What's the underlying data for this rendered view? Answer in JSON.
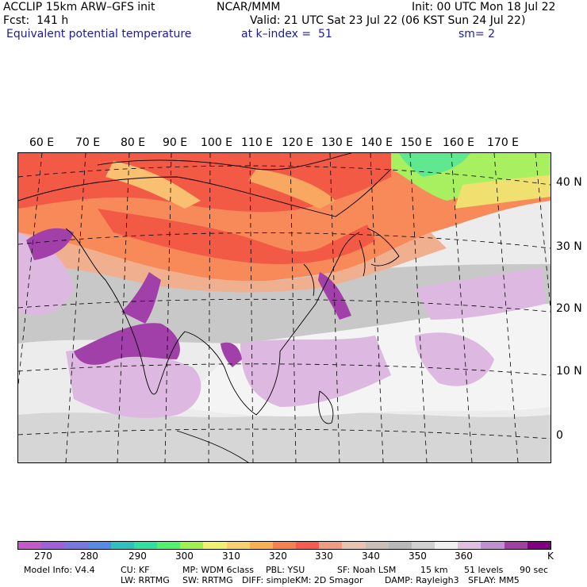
{
  "header": {
    "title": "ACCLIP 15km ARW–GFS init",
    "forecast": "Fcst:  141 h",
    "variable": "Equivalent potential temperature",
    "center": "NCAR/MMM",
    "init": "Init: 00 UTC Mon 18 Jul 22",
    "valid": "Valid: 21 UTC Sat 23 Jul 22 (06 KST Sun 24 Jul 22)",
    "level": "at k–index =  51",
    "smoothing": "sm= 2"
  },
  "map": {
    "lon_labels": [
      "60 E",
      "70 E",
      "80 E",
      "90 E",
      "100 E",
      "110 E",
      "120 E",
      "130 E",
      "140 E",
      "150 E",
      "160 E",
      "170 E"
    ],
    "lat_labels": [
      "40 N",
      "30 N",
      "20 N",
      "10 N",
      "0"
    ]
  },
  "colorbar": {
    "colors": [
      "#c45ac8",
      "#a060d8",
      "#7878e0",
      "#5a8ae8",
      "#30c0c0",
      "#30e0a0",
      "#50f070",
      "#a0f050",
      "#f0f070",
      "#f8d070",
      "#f8b050",
      "#f88050",
      "#f85a50",
      "#f09c80",
      "#e8c4b0",
      "#c8c0b8",
      "#b8b8b8",
      "#d0d0d0",
      "#f0f0f0",
      "#e0c0e0",
      "#c090d0",
      "#a040a0",
      "#800080"
    ],
    "tick_labels": [
      "270",
      "280",
      "290",
      "300",
      "310",
      "320",
      "330",
      "340",
      "350",
      "360"
    ],
    "unit": "K"
  },
  "footer": {
    "line1": [
      "Model Info: V4.4",
      "CU: KF",
      "MP: WDM 6class",
      "PBL: YSU",
      "SF: Noah LSM",
      "15 km",
      "51 levels",
      "90 sec"
    ],
    "line2": [
      "LW: RRTMG",
      "SW: RRTMG",
      "DIFF: simple",
      "KM: 2D Smagor",
      "DAMP: Rayleigh3",
      "SFLAY: MM5"
    ]
  }
}
